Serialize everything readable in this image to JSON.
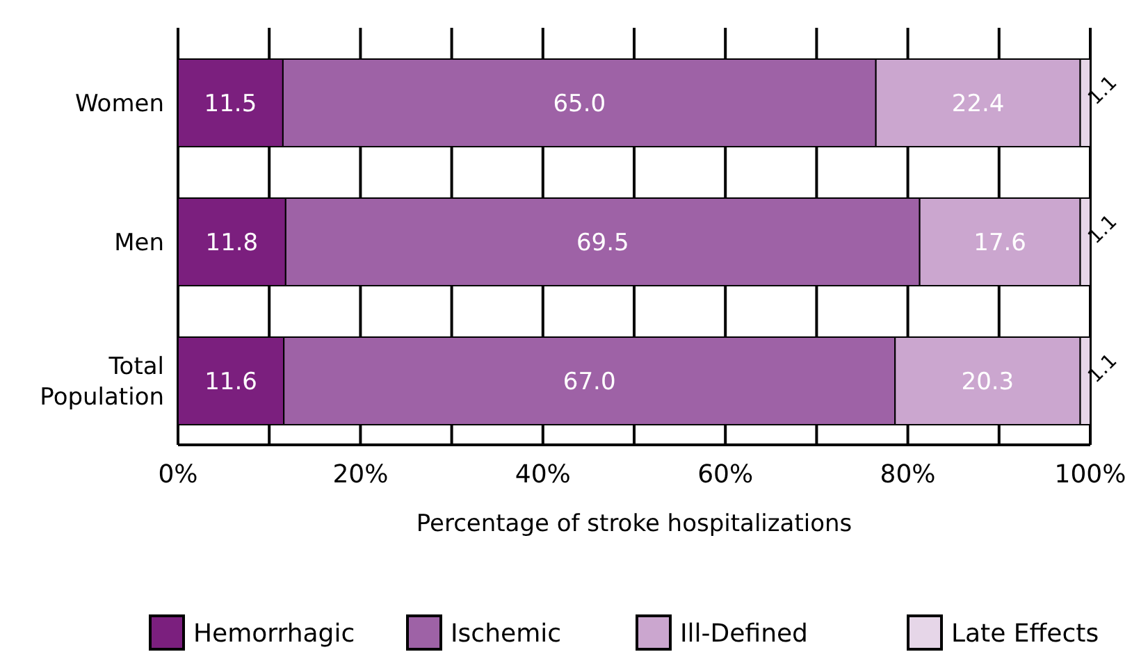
{
  "chart_data": {
    "type": "bar",
    "orientation": "horizontal",
    "stacked": true,
    "xlabel": "Percentage of stroke hospitalizations",
    "categories": [
      "Women",
      "Men",
      "Total\nPopulation"
    ],
    "series": [
      {
        "name": "Hemorrhagic",
        "color": "#7b1f7e",
        "values": [
          11.5,
          11.8,
          11.6
        ]
      },
      {
        "name": "Ischemic",
        "color": "#9e62a6",
        "values": [
          65.0,
          69.5,
          67.0
        ]
      },
      {
        "name": "Ill-Defined",
        "color": "#cba6cf",
        "values": [
          22.4,
          17.6,
          20.3
        ]
      },
      {
        "name": "Late Effects",
        "color": "#e6d6e8",
        "values": [
          1.1,
          1.1,
          1.1
        ]
      }
    ],
    "value_labels": [
      [
        "11.5",
        "11.8",
        "11.6"
      ],
      [
        "65.0",
        "69.5",
        "67.0"
      ],
      [
        "22.4",
        "17.6",
        "20.3"
      ],
      [
        "1.1",
        "1.1",
        "1.1"
      ]
    ],
    "xlim": [
      0,
      100
    ],
    "xticks": [
      {
        "value": 0,
        "label": "0%"
      },
      {
        "value": 10,
        "label": null
      },
      {
        "value": 20,
        "label": "20%"
      },
      {
        "value": 30,
        "label": null
      },
      {
        "value": 40,
        "label": "40%"
      },
      {
        "value": 50,
        "label": null
      },
      {
        "value": 60,
        "label": "60%"
      },
      {
        "value": 70,
        "label": null
      },
      {
        "value": 80,
        "label": "80%"
      },
      {
        "value": 90,
        "label": null
      },
      {
        "value": 100,
        "label": "100%"
      }
    ],
    "grid": "x",
    "legend": "bottom"
  }
}
